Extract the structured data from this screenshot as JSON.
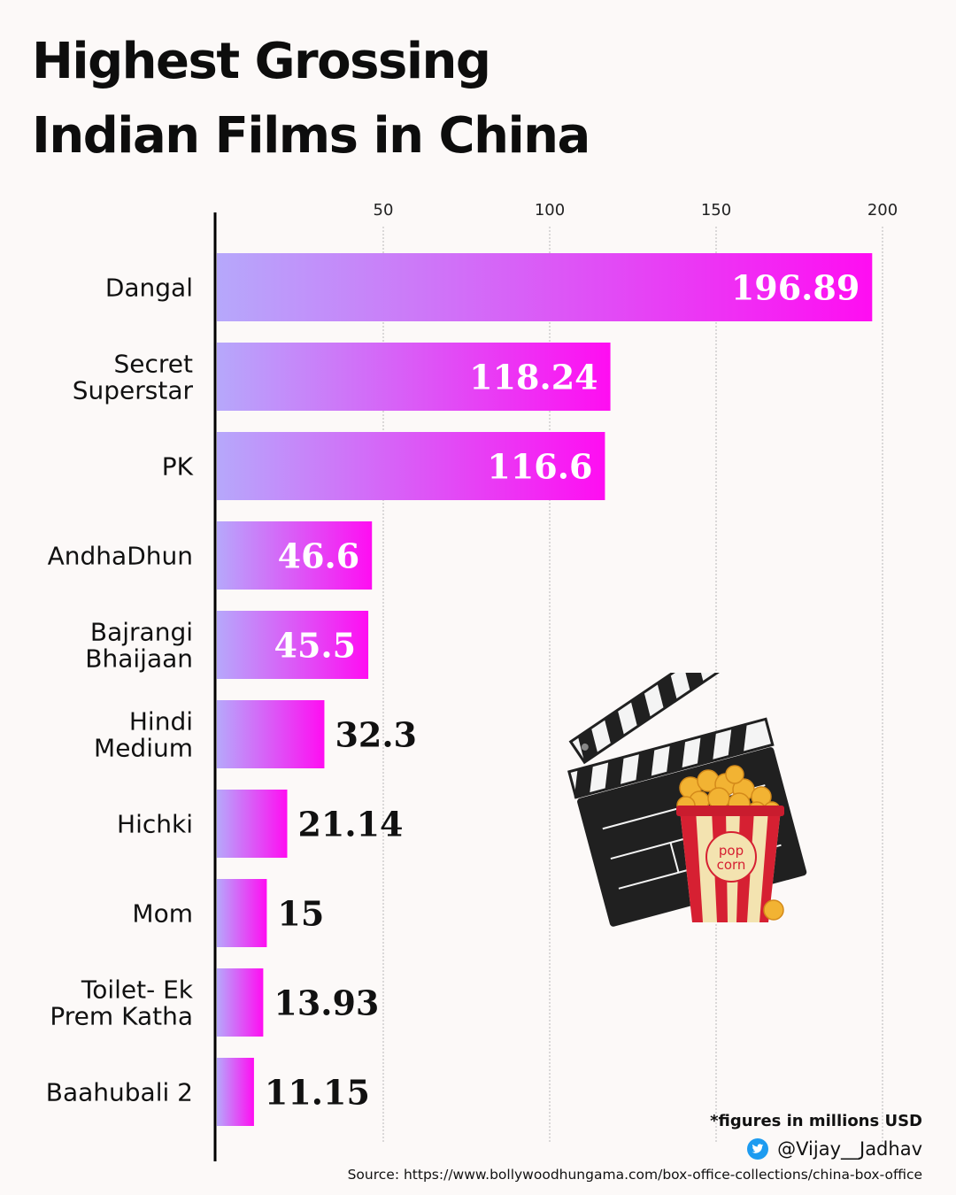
{
  "title_lines": [
    "Highest Grossing",
    "Indian Films in China"
  ],
  "chart_data": {
    "type": "bar",
    "orientation": "horizontal",
    "categories": [
      "Dangal",
      "Secret Superstar",
      "PK",
      "AndhaDhun",
      "Bajrangi Bhaijaan",
      "Hindi Medium",
      "Hichki",
      "Mom",
      "Toilet- Ek Prem Katha",
      "Baahubali 2"
    ],
    "category_lines": [
      [
        "Dangal"
      ],
      [
        "Secret",
        "Superstar"
      ],
      [
        "PK"
      ],
      [
        "AndhaDhun"
      ],
      [
        "Bajrangi",
        "Bhaijaan"
      ],
      [
        "Hindi",
        "Medium"
      ],
      [
        "Hichki"
      ],
      [
        "Mom"
      ],
      [
        "Toilet- Ek",
        "Prem Katha"
      ],
      [
        "Baahubali 2"
      ]
    ],
    "values": [
      196.89,
      118.24,
      116.6,
      46.6,
      45.5,
      32.3,
      21.14,
      15,
      13.93,
      11.15
    ],
    "value_labels": [
      "196.89",
      "118.24",
      "116.6",
      "46.6",
      "45.5",
      "32.3",
      "21.14",
      "15",
      "13.93",
      "11.15"
    ],
    "xticks": [
      50,
      100,
      150,
      200
    ],
    "xtick_labels": [
      "50",
      "100",
      "150",
      "200"
    ],
    "xlim": [
      0,
      200
    ],
    "grid": "vertical dotted",
    "gradient_colors": [
      "#b6a8fb",
      "#ff0df2"
    ]
  },
  "footer": {
    "note": "*figures in millions USD",
    "handle": "@Vijay__Jadhav",
    "source": "Source: https://www.bollywoodhungama.com/box-office-collections/china-box-office"
  },
  "illustration": {
    "popcorn_text_1": "pop",
    "popcorn_text_2": "corn",
    "icon": "clapperboard-popcorn"
  }
}
